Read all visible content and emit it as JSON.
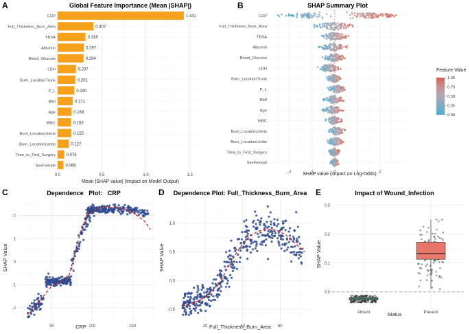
{
  "chart_data": [
    {
      "id": "A",
      "type": "bar",
      "panel_label": "A",
      "title": "Global Feature Importance (Mean |SHAP|)",
      "xlabel": "Mean |SHAP value| (Impact on Model Output)",
      "ylabel": "",
      "orientation": "horizontal",
      "categories": [
        "CRP",
        "Full_Thickness_Burn_Area",
        "TBSA",
        "Albumin",
        "Blood_Glucose",
        "LDH",
        "Burn_LocationTrunk",
        "P_L",
        "BMI",
        "Age",
        "WBC",
        "Burn_LocationJoints",
        "Burn_LocationLimbs",
        "Time_to_First_Surgery",
        "SexFemale"
      ],
      "values": [
        1.431,
        0.407,
        0.316,
        0.297,
        0.294,
        0.207,
        0.201,
        0.19,
        0.171,
        0.158,
        0.153,
        0.155,
        0.127,
        0.075,
        0.066
      ],
      "value_labels": [
        "1.431",
        "0.407",
        "0.316",
        "0.297",
        "0.294",
        "0.207",
        "0.201",
        "0.190",
        "0.171",
        "0.158",
        "0.153",
        "0.155",
        "0.127",
        "0.075",
        "0.066"
      ],
      "xticks": [
        "0.0",
        "0.5",
        "1.0",
        "1.5"
      ],
      "xlim": [
        0,
        1.65
      ],
      "bar_color": "#F5A11C",
      "grid": true
    },
    {
      "id": "B",
      "type": "scatter",
      "subtype": "beeswarm",
      "panel_label": "B",
      "title": "SHAP Summary Plot",
      "xlabel": "SHAP value (impact on Log-Odds)",
      "ylabel": "",
      "categories": [
        "CRP",
        "Full_Thickness_Burn_Area",
        "TBSA",
        "Albumin",
        "Blood_Glucose",
        "LDH",
        "Burn_LocationTrunk",
        "P_L",
        "BMI",
        "Age",
        "WBC",
        "Burn_LocationJoints",
        "Burn_LocationLimbs",
        "Time_to_First_Surgery",
        "SexFemale"
      ],
      "xticks": [
        "-2",
        "-1",
        "0",
        "1",
        "2"
      ],
      "xlim": [
        -2.9,
        3.3
      ],
      "ranges": [
        [
          -2.5,
          2.7
        ],
        [
          -0.9,
          0.85
        ],
        [
          -0.75,
          0.6
        ],
        [
          -0.7,
          0.55
        ],
        [
          -0.6,
          0.55
        ],
        [
          -0.75,
          0.3
        ],
        [
          -0.4,
          0.3
        ],
        [
          -0.3,
          0.5
        ],
        [
          -0.5,
          0.45
        ],
        [
          -0.55,
          0.4
        ],
        [
          -0.4,
          0.3
        ],
        [
          -0.3,
          0.45
        ],
        [
          -0.35,
          0.45
        ],
        [
          -0.3,
          0.25
        ],
        [
          -0.2,
          0.2
        ]
      ],
      "legend": {
        "title": "Feature Value",
        "ticks": [
          "1.00",
          "0.75",
          "0.50",
          "0.25",
          "0.00"
        ],
        "placement": "right",
        "colors": [
          "#D6604D",
          "#C99291",
          "#B0A8B3",
          "#7FA9C3",
          "#4DB0CF"
        ]
      },
      "grid": true
    },
    {
      "id": "C",
      "type": "scatter",
      "panel_label": "C",
      "title": "Dependence   Plot:   CRP",
      "xlabel": "CRP",
      "ylabel": "SHAP Value",
      "xticks": [
        "50",
        "100",
        "150"
      ],
      "yticks": [
        "-2",
        "-1",
        "0",
        "1",
        "2"
      ],
      "xlim": [
        8,
        178
      ],
      "ylim": [
        -2.6,
        2.7
      ],
      "point_color": "#2E4A8F",
      "trend_color": "#E41A1C",
      "trend": {
        "x": [
          20,
          35,
          50,
          62,
          72,
          78,
          85,
          95,
          110,
          130,
          150,
          165,
          172
        ],
        "y": [
          -2.3,
          -1.7,
          -1.05,
          -0.85,
          -0.55,
          0.3,
          1.2,
          2.05,
          2.35,
          2.35,
          2.15,
          1.75,
          1.4
        ]
      },
      "grid": true
    },
    {
      "id": "D",
      "type": "scatter",
      "panel_label": "D",
      "title": "Dependence Plot: Full_Thickness_Burn_Area",
      "xlabel": "Full_Thickness_Burn_Area",
      "ylabel": "SHAP Value",
      "xticks": [
        "20",
        "40",
        "60"
      ],
      "yticks": [
        "-0.5",
        "0.0",
        "0.5",
        "1.0"
      ],
      "xlim": [
        5,
        76
      ],
      "ylim": [
        -0.72,
        1.42
      ],
      "point_color": "#2E4A8F",
      "trend_color": "#E41A1C",
      "trend": {
        "x": [
          8,
          15,
          22,
          28,
          33,
          38,
          43,
          48,
          53,
          58,
          63,
          68,
          73
        ],
        "y": [
          -0.45,
          -0.38,
          -0.25,
          -0.02,
          0.28,
          0.55,
          0.75,
          0.86,
          0.9,
          0.88,
          0.8,
          0.65,
          0.5
        ]
      },
      "grid": true
    },
    {
      "id": "E",
      "type": "box",
      "panel_label": "E",
      "title": "Impact of Wound_Infection",
      "xlabel": "Status",
      "ylabel": "SHAP Value",
      "categories": [
        "Absent",
        "Present"
      ],
      "yticks": [
        "0.0",
        "0.1",
        "0.2",
        "0.3"
      ],
      "ylim": [
        -0.055,
        0.32
      ],
      "boxes": [
        {
          "name": "Absent",
          "min": -0.036,
          "q1": -0.028,
          "median": -0.024,
          "q3": -0.019,
          "max": -0.012,
          "color": "#79B4AF"
        },
        {
          "name": "Present",
          "min": 0.01,
          "q1": 0.113,
          "median": 0.133,
          "q3": 0.172,
          "max": 0.25,
          "color": "#E8776B"
        }
      ],
      "reference_line": 0.0,
      "grid": true
    }
  ]
}
